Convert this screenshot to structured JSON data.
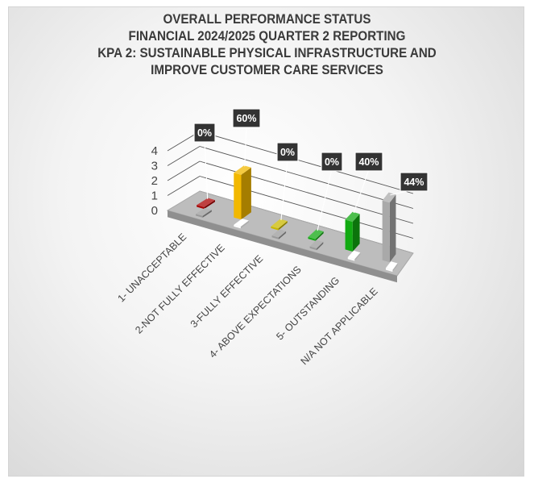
{
  "title_lines": [
    "OVERALL PERFORMANCE STATUS",
    "FINANCIAL 2024/2025 QUARTER 2 REPORTING",
    "KPA 2:  SUSTAINABLE PHYSICAL INFRASTRUCTURE AND",
    "IMPROVE CUSTOMER CARE SERVICES"
  ],
  "chart_data": {
    "type": "bar",
    "title": "OVERALL PERFORMANCE STATUS FINANCIAL 2024/2025 QUARTER 2 REPORTING KPA 2:  SUSTAINABLE PHYSICAL INFRASTRUCTURE AND IMPROVE CUSTOMER CARE SERVICES",
    "categories": [
      "1- UNACCEPTABLE",
      "2-NOT FULLY EFFECTIVE",
      "3-FULLY EFFECTIVE",
      "4- ABOVE EXPECTATIONS",
      "5- OUTSTANDING",
      "N/A NOT APPLICABLE"
    ],
    "series": [
      {
        "values": [
          0,
          3,
          0,
          0,
          2,
          4
        ],
        "colors": [
          "#a80000",
          "#f2b800",
          "#c9b800",
          "#13a813",
          "#11aa11",
          "#a9a9a9"
        ]
      },
      {
        "values": [
          0,
          0,
          0,
          0,
          0,
          0
        ],
        "colors": [
          "#9a9a9a",
          "#ffffff",
          "#9a9a9a",
          "#9a9a9a",
          "#ffffff",
          "#ffffff"
        ]
      }
    ],
    "data_labels": [
      "0%",
      "60%",
      "0%",
      "0%",
      "40%",
      "44%"
    ],
    "y_ticks": [
      "0",
      "1",
      "2",
      "3",
      "4"
    ],
    "ylim": [
      0,
      4
    ],
    "grid": true,
    "legend": "none",
    "projection": "3d-perspective"
  }
}
